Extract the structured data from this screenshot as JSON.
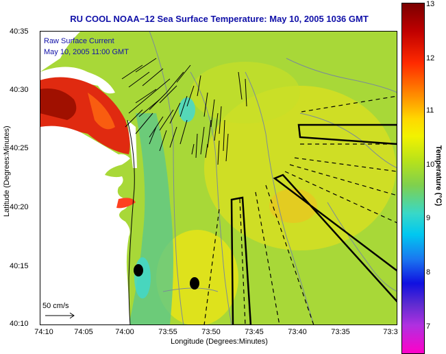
{
  "title": "RU COOL  NOAA−12  Sea Surface Temperature:  May 10, 2005 1036 GMT",
  "legend": {
    "line1": "Raw Surface Current",
    "line2": "May 10, 2005 11:00 GMT"
  },
  "scale_label": "50 cm/s",
  "axes": {
    "xlabel": "Longitude (Degrees:Minutes)",
    "ylabel": "Latitude (Degrees:Minutes)",
    "xticks": [
      "74:10",
      "74:05",
      "74:00",
      "73:55",
      "73:50",
      "73:45",
      "73:40",
      "73:35",
      "73:3"
    ],
    "yticks": [
      "40:35",
      "40:30",
      "40:25",
      "40:20",
      "40:15",
      "40:10"
    ]
  },
  "colorbar": {
    "label": "Temperature (°C)",
    "ticks": [
      "13",
      "12",
      "11",
      "10",
      "9",
      "8",
      "7"
    ]
  },
  "colors": {
    "title": "#1010a8",
    "ocean": "#a8d838",
    "land": "#ffffff"
  }
}
